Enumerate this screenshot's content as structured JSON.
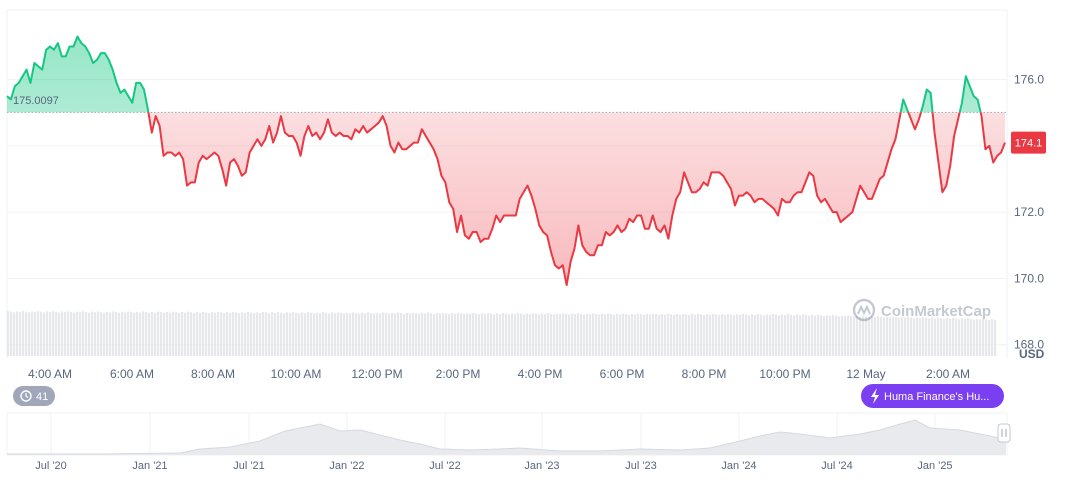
{
  "chart_data": {
    "type": "line",
    "baseline": 175.0097,
    "baseline_label": "175.0097",
    "current_price": 174.1,
    "current_price_label": "174.1",
    "unit": "USD",
    "ylim": [
      167.6,
      178.1
    ],
    "yticks": [
      {
        "value": 176.0,
        "label": "176.0"
      },
      {
        "value": 174.0,
        "label": ""
      },
      {
        "value": 172.0,
        "label": "172.0"
      },
      {
        "value": 170.0,
        "label": "170.0"
      },
      {
        "value": 168.0,
        "label": "168.0"
      }
    ],
    "xticks": [
      "4:00 AM",
      "6:00 AM",
      "8:00 AM",
      "10:00 AM",
      "12:00 PM",
      "2:00 PM",
      "4:00 PM",
      "6:00 PM",
      "8:00 PM",
      "10:00 PM",
      "12 May",
      "2:00 AM"
    ],
    "colors": {
      "up": "#16c784",
      "down": "#ea3943",
      "baseline": "#a0a8b8",
      "grid": "#eff2f5"
    },
    "series": [
      {
        "values": [
          175.5,
          175.4,
          175.8,
          175.9,
          176.1,
          176.3,
          175.9,
          176.5,
          176.4,
          176.3,
          176.9,
          177.0,
          176.9,
          177.1,
          176.7,
          176.7,
          177.0,
          177.0,
          177.3,
          177.1,
          177.0,
          176.8,
          176.5,
          176.6,
          176.8,
          176.8,
          176.6,
          176.3,
          175.9,
          175.6,
          175.7,
          175.5,
          175.3,
          175.9,
          175.9,
          175.7,
          175.1,
          174.4,
          174.9,
          174.6,
          173.7,
          173.8,
          173.8,
          173.7,
          173.8,
          173.6,
          172.8,
          172.9,
          172.9,
          173.5,
          173.7,
          173.6,
          173.7,
          173.8,
          173.7,
          173.3,
          172.8,
          173.5,
          173.6,
          173.4,
          173.1,
          173.2,
          173.8,
          174.0,
          174.2,
          174.0,
          174.2,
          174.6,
          174.1,
          174.4,
          174.9,
          174.4,
          174.3,
          174.3,
          174.1,
          173.7,
          174.3,
          174.6,
          174.3,
          174.4,
          174.2,
          174.4,
          174.8,
          174.4,
          174.3,
          174.4,
          174.3,
          174.3,
          174.2,
          174.5,
          174.4,
          174.6,
          174.4,
          174.5,
          174.6,
          174.7,
          174.9,
          174.6,
          174.0,
          173.8,
          174.1,
          173.9,
          173.9,
          174.0,
          174.1,
          174.1,
          174.5,
          174.3,
          174.1,
          173.9,
          173.6,
          173.1,
          172.9,
          172.3,
          172.1,
          171.4,
          171.9,
          171.3,
          171.2,
          171.4,
          171.4,
          171.1,
          171.2,
          171.2,
          171.5,
          171.9,
          171.7,
          171.9,
          171.9,
          171.9,
          171.9,
          172.4,
          172.6,
          172.8,
          172.5,
          172.1,
          171.6,
          171.4,
          171.3,
          170.8,
          170.4,
          170.3,
          170.4,
          169.8,
          170.5,
          170.9,
          171.6,
          171.0,
          170.8,
          170.7,
          170.7,
          171.0,
          171.0,
          171.4,
          171.3,
          171.4,
          171.6,
          171.4,
          171.5,
          171.8,
          171.7,
          171.9,
          171.9,
          171.5,
          171.5,
          171.9,
          171.5,
          171.4,
          171.6,
          171.2,
          171.9,
          172.4,
          172.6,
          173.2,
          172.9,
          172.6,
          172.6,
          172.7,
          172.9,
          172.8,
          173.2,
          173.2,
          173.2,
          173.1,
          172.9,
          172.7,
          172.2,
          172.5,
          172.5,
          172.6,
          172.5,
          172.3,
          172.4,
          172.4,
          172.3,
          172.2,
          172.1,
          171.9,
          172.4,
          172.3,
          172.3,
          172.5,
          172.6,
          172.6,
          172.9,
          173.2,
          173.1,
          172.5,
          172.3,
          172.4,
          172.2,
          172.0,
          172.0,
          171.7,
          171.8,
          171.9,
          172.0,
          172.4,
          172.8,
          172.6,
          172.4,
          172.4,
          172.7,
          173.0,
          173.1,
          173.5,
          173.9,
          174.2,
          174.8,
          175.4,
          175.1,
          174.8,
          174.5,
          174.8,
          175.2,
          175.7,
          175.6,
          174.4,
          173.5,
          172.6,
          172.8,
          173.4,
          174.3,
          174.8,
          175.3,
          176.1,
          175.8,
          175.5,
          175.4,
          174.9,
          173.9,
          174.0,
          173.5,
          173.7,
          173.8,
          174.1
        ]
      }
    ],
    "volume_note": "volume bars below price",
    "navigator": {
      "ticks": [
        "Jul '20",
        "Jan '21",
        "Jul '21",
        "Jan '22",
        "Jul '22",
        "Jan '23",
        "Jul '23",
        "Jan '24",
        "Jul '24",
        "Jan '25"
      ]
    }
  },
  "controls": {
    "history_count": "41",
    "news_badge": "Huma Finance's Hu...",
    "watermark": "CoinMarketCap"
  }
}
